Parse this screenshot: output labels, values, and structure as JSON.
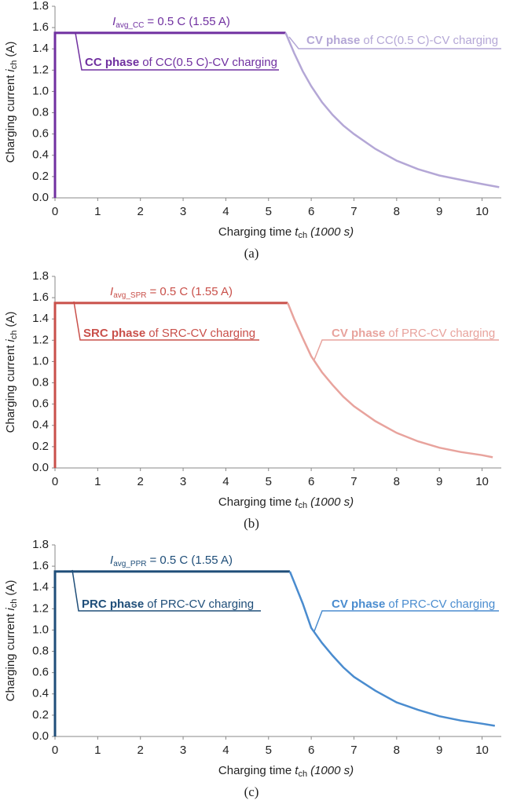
{
  "chart_data": [
    {
      "type": "line",
      "caption": "(a)",
      "xlabel": {
        "text": "Charging time",
        "var": "t",
        "sub": "ch",
        "unit": "(1000 s)"
      },
      "ylabel": {
        "text": "Charging current",
        "var": "i",
        "sub": "ch",
        "unit": "(A)"
      },
      "avg_label": {
        "var": "I",
        "sub": "avg_CC",
        "text": "= 0.5 C (1.55 A)"
      },
      "xlim": [
        0,
        10.45
      ],
      "xticks": [
        0,
        1,
        2,
        3,
        4,
        5,
        6,
        7,
        8,
        9,
        10
      ],
      "ylim": [
        0,
        1.8
      ],
      "yticks": [
        {
          "value": 0,
          "label": "0.0"
        },
        0.2,
        0.4,
        0.6,
        0.8,
        {
          "value": 1,
          "label": "1.0"
        },
        1.2,
        1.4,
        1.6,
        1.8
      ],
      "grid": false,
      "series": [
        {
          "name": "CC phase",
          "suffix": "of CC(0.5 C)-CV charging",
          "color": "#7030a0",
          "x": [
            0,
            0,
            5.4
          ],
          "values": [
            0,
            1.55,
            1.55
          ]
        },
        {
          "name": "CV phase",
          "suffix": "of CC(0.5 C)-CV charging",
          "color": "#b4a7d6",
          "x": [
            5.4,
            5.6,
            5.8,
            6.0,
            6.25,
            6.5,
            6.75,
            7.0,
            7.5,
            8.0,
            8.5,
            9.0,
            9.5,
            10.0,
            10.4
          ],
          "values": [
            1.55,
            1.36,
            1.19,
            1.05,
            0.9,
            0.78,
            0.68,
            0.6,
            0.46,
            0.35,
            0.27,
            0.21,
            0.17,
            0.13,
            0.1
          ]
        }
      ]
    },
    {
      "type": "line",
      "caption": "(b)",
      "xlabel": {
        "text": "Charging time",
        "var": "t",
        "sub": "ch",
        "unit": "(1000 s)"
      },
      "ylabel": {
        "text": "Charging current",
        "var": "i",
        "sub": "ch",
        "unit": "(A)"
      },
      "avg_label": {
        "var": "I",
        "sub": "avg_SPR",
        "text": "= 0.5 C (1.55 A)"
      },
      "xlim": [
        0,
        10.45
      ],
      "xticks": [
        0,
        1,
        2,
        3,
        4,
        5,
        6,
        7,
        8,
        9,
        10
      ],
      "ylim": [
        0,
        1.8
      ],
      "yticks": [
        {
          "value": 0,
          "label": "0.0"
        },
        0.2,
        0.4,
        0.6,
        0.8,
        {
          "value": 1,
          "label": "1.0"
        },
        1.2,
        1.4,
        1.6,
        1.8
      ],
      "grid": false,
      "series": [
        {
          "name": "SRC phase",
          "suffix": "of SRC-CV charging",
          "color": "#c9504a",
          "x": [
            0,
            0,
            5.45
          ],
          "values": [
            0,
            1.55,
            1.55
          ]
        },
        {
          "name": "CV phase",
          "suffix": "of PRC-CV charging",
          "color": "#e8a39d",
          "x": [
            5.45,
            5.6,
            5.8,
            6.0,
            6.25,
            6.5,
            6.75,
            7.0,
            7.5,
            8.0,
            8.5,
            9.0,
            9.5,
            10.0,
            10.25
          ],
          "values": [
            1.55,
            1.4,
            1.22,
            1.05,
            0.9,
            0.78,
            0.67,
            0.58,
            0.44,
            0.33,
            0.25,
            0.19,
            0.15,
            0.12,
            0.1
          ]
        }
      ]
    },
    {
      "type": "line",
      "caption": "(c)",
      "xlabel": {
        "text": "Charging time",
        "var": "t",
        "sub": "ch",
        "unit": "(1000 s)"
      },
      "ylabel": {
        "text": "Charging current",
        "var": "i",
        "sub": "ch",
        "unit": "(A)"
      },
      "avg_label": {
        "var": "I",
        "sub": "avg_PPR",
        "text": "= 0.5 C (1.55 A)"
      },
      "xlim": [
        0,
        10.45
      ],
      "xticks": [
        0,
        1,
        2,
        3,
        4,
        5,
        6,
        7,
        8,
        9,
        10
      ],
      "ylim": [
        0,
        1.8
      ],
      "yticks": [
        {
          "value": 0,
          "label": "0.0"
        },
        0.2,
        0.4,
        0.6,
        0.8,
        {
          "value": 1,
          "label": "1.0"
        },
        1.2,
        1.4,
        1.6,
        1.8
      ],
      "grid": false,
      "series": [
        {
          "name": "PRC phase",
          "suffix": "of PRC-CV charging",
          "color": "#1f4e79",
          "x": [
            0,
            0,
            5.5
          ],
          "values": [
            0,
            1.55,
            1.55
          ]
        },
        {
          "name": "CV phase",
          "suffix": "of PRC-CV charging",
          "color": "#4a8ccf",
          "x": [
            5.5,
            5.6,
            5.8,
            6.0,
            6.25,
            6.5,
            6.75,
            7.0,
            7.5,
            8.0,
            8.5,
            9.0,
            9.5,
            10.0,
            10.3
          ],
          "values": [
            1.55,
            1.45,
            1.25,
            1.02,
            0.88,
            0.76,
            0.65,
            0.56,
            0.43,
            0.32,
            0.25,
            0.19,
            0.15,
            0.12,
            0.1
          ]
        }
      ]
    }
  ]
}
